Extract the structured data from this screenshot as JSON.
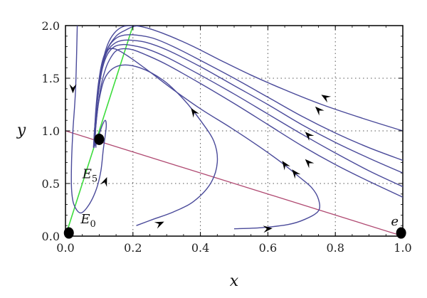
{
  "chart_data": {
    "type": "line",
    "title": "",
    "xlabel": "x",
    "ylabel": "y",
    "xlim": [
      0,
      1
    ],
    "ylim": [
      0,
      2
    ],
    "x_ticks": [
      "0.0",
      "0.2",
      "0.4",
      "0.6",
      "0.8",
      "1.0"
    ],
    "y_ticks": [
      "0.0",
      "0.5",
      "1.0",
      "1.5",
      "2.0"
    ],
    "grid": true,
    "colors": {
      "trajectory": "#4a4a9a",
      "green_line": "#3ddc3d",
      "red_line": "#b04a72",
      "point": "#000000"
    },
    "green_line": {
      "x": [
        0,
        0.2
      ],
      "y": [
        0,
        2.0
      ]
    },
    "red_line": {
      "x": [
        0,
        1.0
      ],
      "y": [
        1.0,
        0.0
      ]
    },
    "points": [
      {
        "name": "E0",
        "label_main": "E",
        "label_sub": "0",
        "x": 0.01,
        "y": 0.03,
        "label_x": 0.045,
        "label_y": 0.12
      },
      {
        "name": "E5",
        "label_main": "E",
        "label_sub": "5",
        "x": 0.1,
        "y": 0.92,
        "label_x": 0.05,
        "label_y": 0.55
      },
      {
        "name": "e",
        "label_main": "e",
        "label_sub": "",
        "x": 0.995,
        "y": 0.03,
        "label_x": 0.965,
        "label_y": 0.1
      }
    ],
    "series": [
      {
        "x": [
          0.035,
          0.03,
          0.022,
          0.018,
          0.018,
          0.025,
          0.045,
          0.07,
          0.092,
          0.105,
          0.112,
          0.118,
          0.121,
          0.118,
          0.11,
          0.1,
          0.092,
          0.09
        ],
        "y": [
          2.0,
          1.4,
          1.0,
          0.7,
          0.45,
          0.3,
          0.22,
          0.3,
          0.45,
          0.62,
          0.82,
          0.96,
          1.05,
          1.1,
          1.06,
          0.97,
          0.9,
          0.84
        ]
      },
      {
        "x": [
          0.21,
          0.26,
          0.32,
          0.38,
          0.43,
          0.45,
          0.44,
          0.4,
          0.35,
          0.29,
          0.22,
          0.16,
          0.12,
          0.1,
          0.09,
          0.085,
          0.09,
          0.1,
          0.12,
          0.15,
          0.18,
          0.2,
          0.22
        ],
        "y": [
          0.1,
          0.16,
          0.23,
          0.33,
          0.5,
          0.7,
          0.9,
          1.1,
          1.3,
          1.48,
          1.6,
          1.62,
          1.52,
          1.3,
          1.05,
          0.88,
          1.2,
          1.5,
          1.75,
          1.9,
          1.96,
          1.99,
          2.0
        ]
      },
      {
        "x": [
          0.5,
          0.58,
          0.66,
          0.71,
          0.75,
          0.75,
          0.73,
          0.69,
          0.64,
          0.57,
          0.49,
          0.4,
          0.32,
          0.25,
          0.19,
          0.145,
          0.12,
          0.105,
          0.095,
          0.09,
          0.088
        ],
        "y": [
          0.07,
          0.08,
          0.11,
          0.16,
          0.24,
          0.35,
          0.46,
          0.57,
          0.7,
          0.86,
          1.03,
          1.21,
          1.39,
          1.56,
          1.7,
          1.78,
          1.75,
          1.6,
          1.35,
          1.1,
          0.86
        ]
      },
      {
        "x": [
          1.0,
          0.9,
          0.8,
          0.7,
          0.6,
          0.5,
          0.4,
          0.3,
          0.24,
          0.2,
          0.17,
          0.15,
          0.135,
          0.12,
          0.105,
          0.095,
          0.089,
          0.087
        ],
        "y": [
          0.37,
          0.52,
          0.68,
          0.86,
          1.06,
          1.26,
          1.45,
          1.63,
          1.72,
          1.77,
          1.78,
          1.76,
          1.7,
          1.6,
          1.42,
          1.2,
          1.0,
          0.86
        ]
      },
      {
        "x": [
          1.0,
          0.9,
          0.8,
          0.7,
          0.6,
          0.5,
          0.4,
          0.3,
          0.24,
          0.2,
          0.17,
          0.145,
          0.125,
          0.11,
          0.1,
          0.092,
          0.088,
          0.086
        ],
        "y": [
          0.47,
          0.62,
          0.79,
          0.97,
          1.16,
          1.35,
          1.53,
          1.7,
          1.78,
          1.81,
          1.82,
          1.8,
          1.73,
          1.6,
          1.42,
          1.2,
          1.0,
          0.85
        ]
      },
      {
        "x": [
          1.0,
          0.9,
          0.8,
          0.7,
          0.6,
          0.5,
          0.4,
          0.3,
          0.24,
          0.2,
          0.17,
          0.145,
          0.125,
          0.11,
          0.1,
          0.092,
          0.087,
          0.085
        ],
        "y": [
          0.6,
          0.74,
          0.89,
          1.06,
          1.25,
          1.43,
          1.61,
          1.77,
          1.84,
          1.86,
          1.86,
          1.83,
          1.76,
          1.62,
          1.42,
          1.2,
          1.0,
          0.84
        ]
      },
      {
        "x": [
          1.0,
          0.9,
          0.8,
          0.7,
          0.6,
          0.5,
          0.4,
          0.32,
          0.26,
          0.21,
          0.175,
          0.15,
          0.128,
          0.112,
          0.1,
          0.092,
          0.086,
          0.084
        ],
        "y": [
          0.72,
          0.84,
          0.98,
          1.14,
          1.32,
          1.5,
          1.67,
          1.8,
          1.88,
          1.91,
          1.91,
          1.88,
          1.8,
          1.66,
          1.45,
          1.22,
          1.0,
          0.84
        ]
      },
      {
        "x": [
          1.0,
          0.88,
          0.76,
          0.65,
          0.55,
          0.46,
          0.38,
          0.31,
          0.26,
          0.225,
          0.2,
          0.17,
          0.145,
          0.125,
          0.11,
          0.1,
          0.092,
          0.086,
          0.083
        ],
        "y": [
          1.0,
          1.12,
          1.25,
          1.39,
          1.53,
          1.67,
          1.8,
          1.9,
          1.96,
          1.99,
          2.0,
          1.99,
          1.93,
          1.82,
          1.65,
          1.45,
          1.22,
          1.0,
          0.84
        ]
      }
    ],
    "arrows": [
      {
        "x": 0.022,
        "y": 1.4,
        "dx": 0,
        "dy": -1
      },
      {
        "x": 0.118,
        "y": 0.52,
        "dx": 0.4,
        "dy": 1
      },
      {
        "x": 0.28,
        "y": 0.12,
        "dx": 1,
        "dy": 0.45
      },
      {
        "x": 0.38,
        "y": 1.18,
        "dx": -0.7,
        "dy": 1
      },
      {
        "x": 0.6,
        "y": 0.07,
        "dx": 1,
        "dy": 0.1
      },
      {
        "x": 0.65,
        "y": 0.68,
        "dx": -0.7,
        "dy": 1
      },
      {
        "x": 0.68,
        "y": 0.6,
        "dx": -0.8,
        "dy": 1
      },
      {
        "x": 0.72,
        "y": 0.7,
        "dx": -1,
        "dy": 1
      },
      {
        "x": 0.72,
        "y": 0.96,
        "dx": -1,
        "dy": 1
      },
      {
        "x": 0.75,
        "y": 1.2,
        "dx": -1,
        "dy": 1
      },
      {
        "x": 0.77,
        "y": 1.32,
        "dx": -1,
        "dy": 0.6
      }
    ]
  }
}
